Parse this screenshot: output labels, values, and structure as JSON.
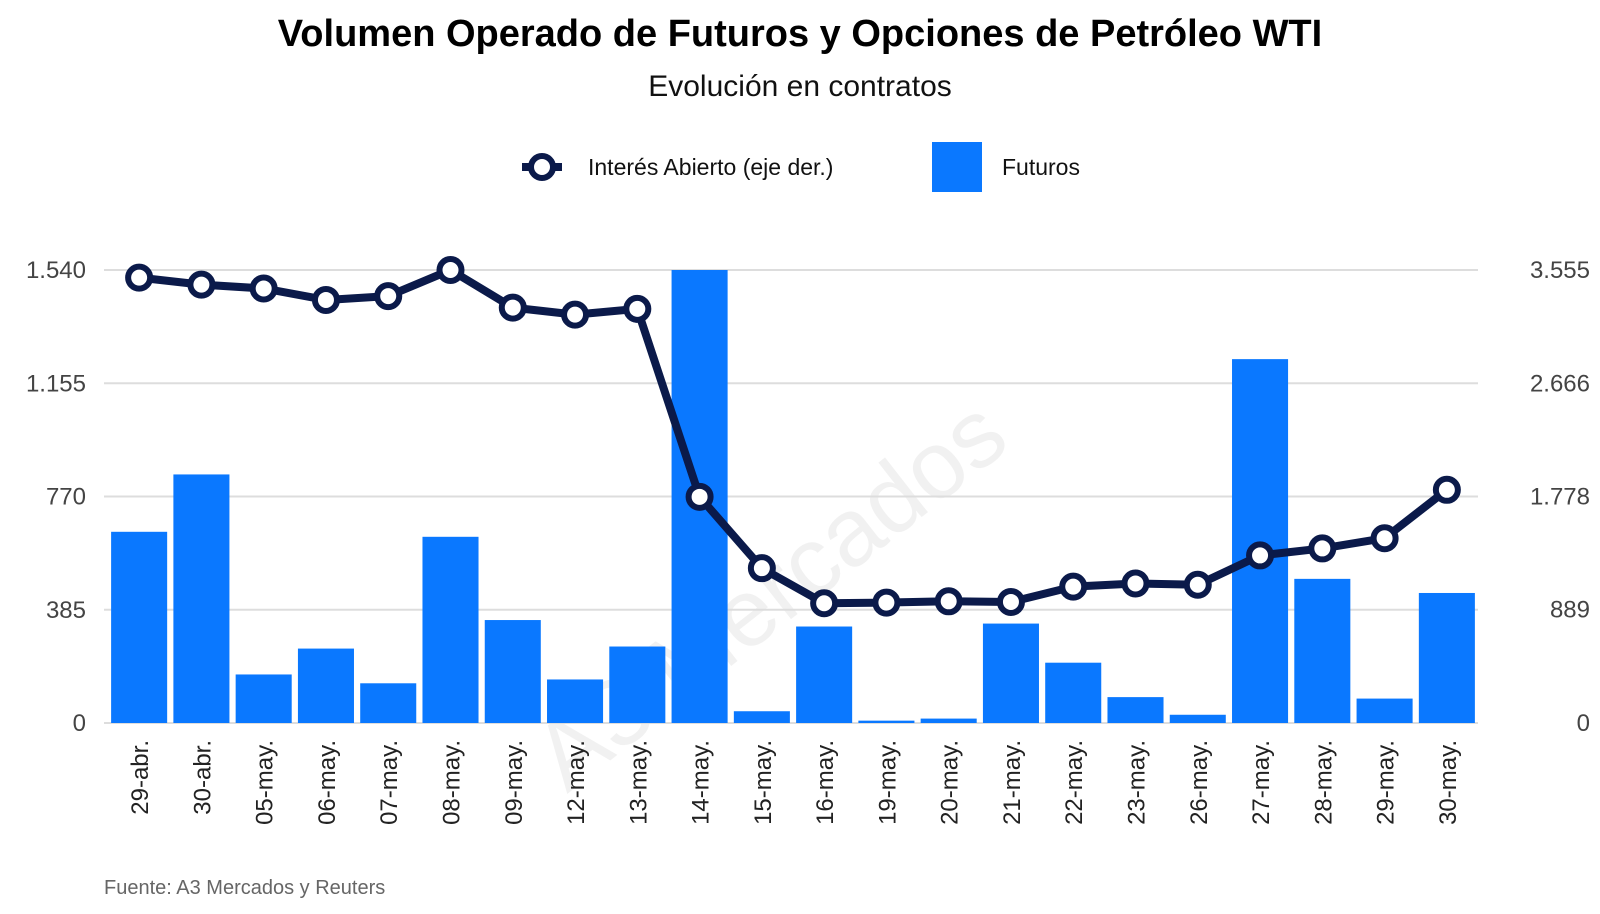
{
  "chart_data": {
    "type": "bar",
    "title": "Volumen Operado de Futuros y Opciones de Petróleo WTI",
    "subtitle": "Evolución en contratos",
    "source": "Fuente: A3 Mercados y Reuters",
    "watermark": "A3 Mercados",
    "categories": [
      "29-abr.",
      "30-abr.",
      "05-may.",
      "06-may.",
      "07-may.",
      "08-may.",
      "09-may.",
      "12-may.",
      "13-may.",
      "14-may.",
      "15-may.",
      "16-may.",
      "19-may.",
      "20-may.",
      "21-may.",
      "22-may.",
      "23-may.",
      "26-may.",
      "27-may.",
      "28-may.",
      "29-may.",
      "30-may."
    ],
    "series": [
      {
        "name": "Futuros",
        "type": "bar",
        "axis": "left",
        "color": "#0A78FF",
        "values": [
          650,
          845,
          165,
          253,
          135,
          633,
          350,
          148,
          260,
          1540,
          40,
          328,
          8,
          15,
          338,
          205,
          88,
          28,
          1237,
          490,
          83,
          442
        ]
      },
      {
        "name": "Interés Abierto (eje der.)",
        "type": "line",
        "axis": "right",
        "color": "#0B1A4A",
        "values": [
          3495,
          3440,
          3410,
          3320,
          3350,
          3555,
          3260,
          3205,
          3250,
          1775,
          1215,
          940,
          945,
          955,
          950,
          1070,
          1095,
          1085,
          1315,
          1370,
          1450,
          1830
        ]
      }
    ],
    "y_left": {
      "ticks": [
        "0",
        "385",
        "770",
        "1.155",
        "1.540"
      ],
      "tick_values": [
        0,
        385,
        770,
        1155,
        1540
      ],
      "range": [
        0,
        1540
      ]
    },
    "y_right": {
      "ticks": [
        "0",
        "889",
        "1.778",
        "2.666",
        "3.555"
      ],
      "tick_values": [
        0,
        889,
        1778,
        2666,
        3555
      ],
      "range": [
        0,
        3555
      ]
    },
    "grid": true,
    "legend_position": "top-center"
  }
}
